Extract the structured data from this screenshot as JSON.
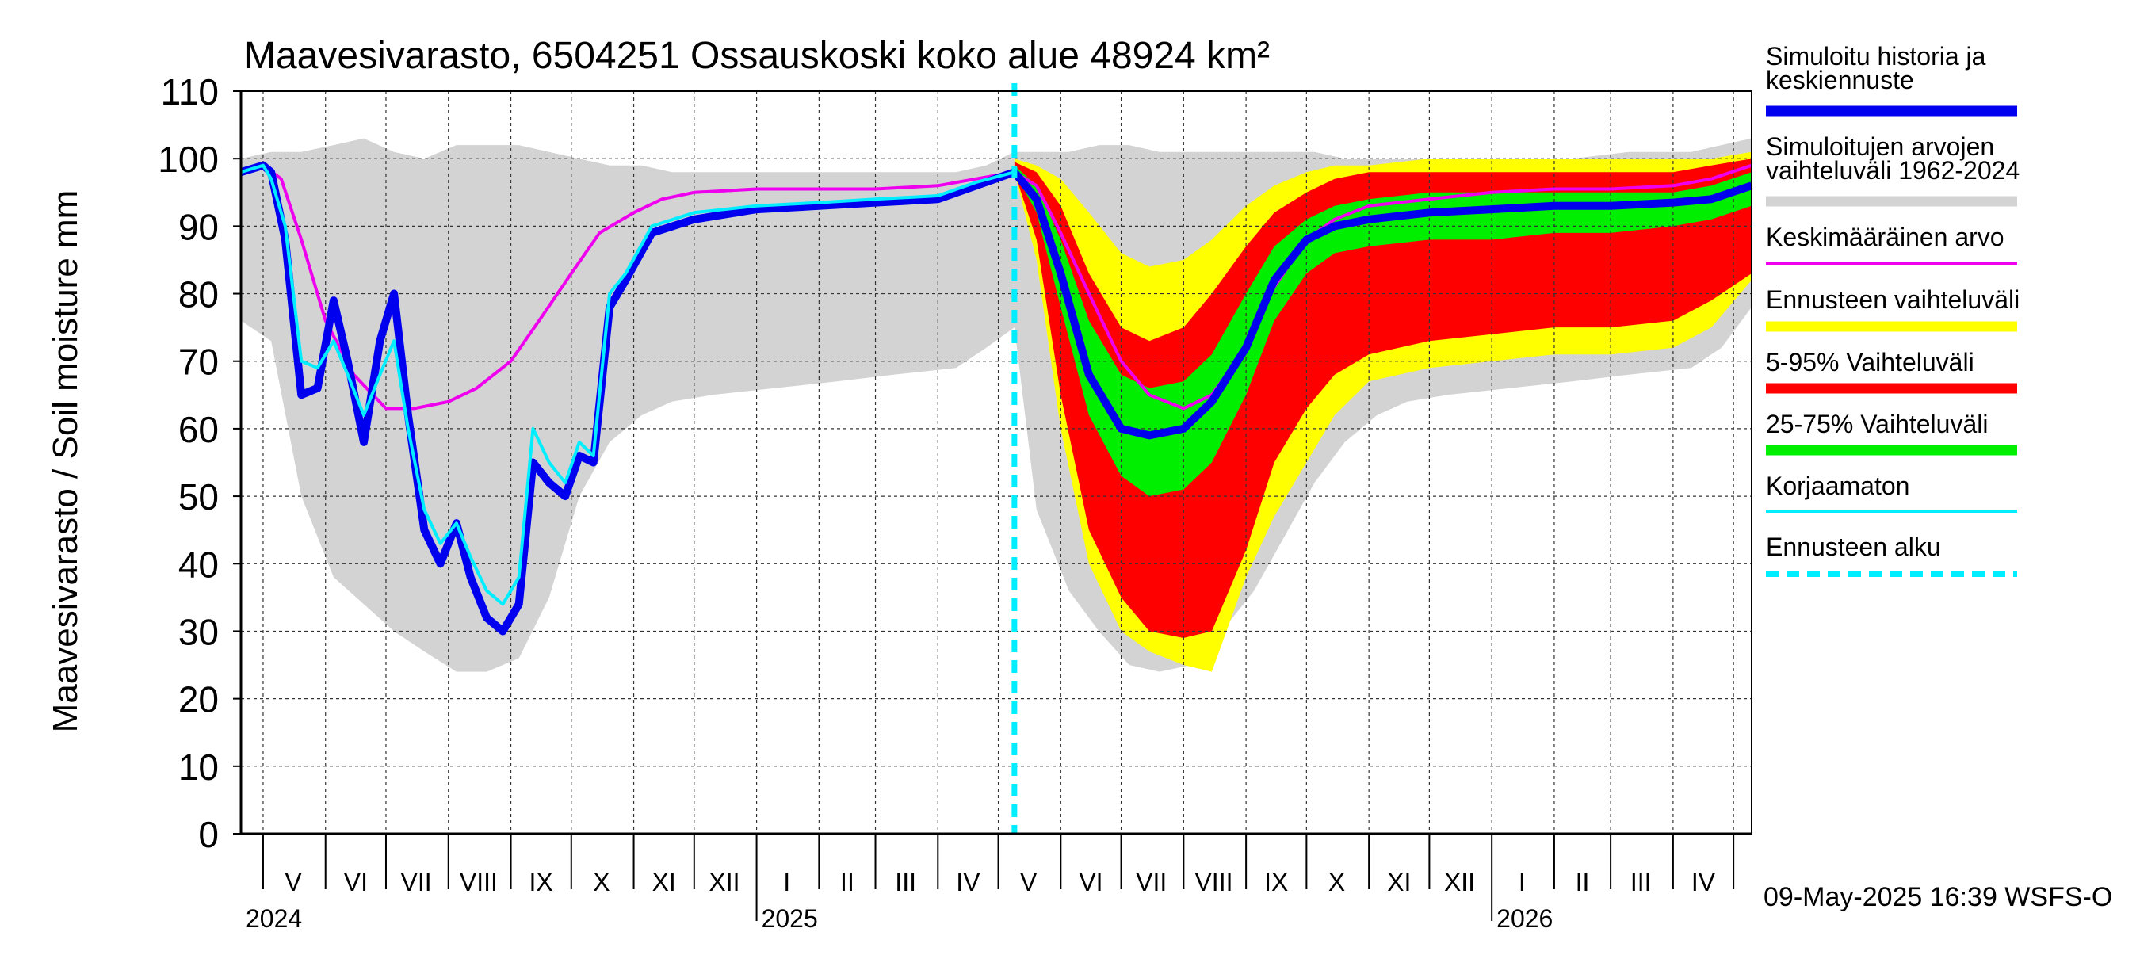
{
  "chart_data": {
    "type": "area",
    "title": "Maavesivarasto, 6504251 Ossauskoski koko alue 48924 km²",
    "ylabel": "Maavesivarasto / Soil moisture   mm",
    "ylim": [
      0,
      110
    ],
    "yticks": [
      0,
      10,
      20,
      30,
      40,
      50,
      60,
      70,
      80,
      90,
      100,
      110
    ],
    "grid": true,
    "legend_position": "right",
    "x_start": "2024-04-20",
    "x_end": "2026-05-10",
    "month_labels": [
      {
        "label": "V",
        "date": "2024-05-16"
      },
      {
        "label": "VI",
        "date": "2024-06-16"
      },
      {
        "label": "VII",
        "date": "2024-07-16"
      },
      {
        "label": "VIII",
        "date": "2024-08-16"
      },
      {
        "label": "IX",
        "date": "2024-09-16"
      },
      {
        "label": "X",
        "date": "2024-10-16"
      },
      {
        "label": "XI",
        "date": "2024-11-16"
      },
      {
        "label": "XII",
        "date": "2024-12-16"
      },
      {
        "label": "I",
        "date": "2025-01-16"
      },
      {
        "label": "II",
        "date": "2025-02-15"
      },
      {
        "label": "III",
        "date": "2025-03-16"
      },
      {
        "label": "IV",
        "date": "2025-04-16"
      },
      {
        "label": "V",
        "date": "2025-05-16"
      },
      {
        "label": "VI",
        "date": "2025-06-16"
      },
      {
        "label": "VII",
        "date": "2025-07-16"
      },
      {
        "label": "VIII",
        "date": "2025-08-16"
      },
      {
        "label": "IX",
        "date": "2025-09-16"
      },
      {
        "label": "X",
        "date": "2025-10-16"
      },
      {
        "label": "XI",
        "date": "2025-11-16"
      },
      {
        "label": "XII",
        "date": "2025-12-16"
      },
      {
        "label": "I",
        "date": "2026-01-16"
      },
      {
        "label": "II",
        "date": "2026-02-15"
      },
      {
        "label": "III",
        "date": "2026-03-16"
      },
      {
        "label": "IV",
        "date": "2026-04-16"
      }
    ],
    "month_boundaries": [
      "2024-05-01",
      "2024-06-01",
      "2024-07-01",
      "2024-08-01",
      "2024-09-01",
      "2024-10-01",
      "2024-11-01",
      "2024-12-01",
      "2025-01-01",
      "2025-02-01",
      "2025-03-01",
      "2025-04-01",
      "2025-05-01",
      "2025-06-01",
      "2025-07-01",
      "2025-08-01",
      "2025-09-01",
      "2025-10-01",
      "2025-11-01",
      "2025-12-01",
      "2026-01-01",
      "2026-02-01",
      "2026-03-01",
      "2026-04-01",
      "2026-05-01"
    ],
    "year_labels": [
      {
        "label": "2024",
        "date": "2024-04-20"
      },
      {
        "label": "2025",
        "date": "2025-01-01"
      },
      {
        "label": "2026",
        "date": "2026-01-01"
      }
    ],
    "forecast_start": "2025-05-09",
    "timestamp": "09-May-2025 16:39 WSFS-O",
    "legend": [
      {
        "label": "Simuloitu historia ja keskiennuste",
        "color": "#0000ee",
        "style": "thick"
      },
      {
        "label": "Simuloitujen arvojen vaihteluväli 1962-2024",
        "color": "#d3d3d3",
        "style": "thick"
      },
      {
        "label": "Keskimääräinen arvo",
        "color": "#ee00ee",
        "style": "thin"
      },
      {
        "label": "Ennusteen vaihteluväli",
        "color": "#ffff00",
        "style": "thick"
      },
      {
        "label": "5-95% Vaihteluväli",
        "color": "#ff0000",
        "style": "thick"
      },
      {
        "label": "25-75% Vaihteluväli",
        "color": "#00ee00",
        "style": "thick"
      },
      {
        "label": "Korjaamaton",
        "color": "#00eeff",
        "style": "thin"
      },
      {
        "label": "Ennusteen alku",
        "color": "#00eeff",
        "style": "dashed"
      }
    ],
    "series": {
      "hist_range": {
        "name": "Simuloitujen arvojen vaihteluväli 1962-2024",
        "color": "#d3d3d3",
        "x": [
          "2024-04-20",
          "2024-05-05",
          "2024-05-20",
          "2024-06-05",
          "2024-06-20",
          "2024-07-05",
          "2024-07-20",
          "2024-08-05",
          "2024-08-20",
          "2024-09-05",
          "2024-09-20",
          "2024-10-05",
          "2024-10-20",
          "2024-11-05",
          "2024-11-20",
          "2024-12-10",
          "2025-01-10",
          "2025-02-10",
          "2025-03-10",
          "2025-04-10",
          "2025-04-25",
          "2025-05-09",
          "2025-05-20",
          "2025-06-05",
          "2025-06-20",
          "2025-07-05",
          "2025-07-20",
          "2025-08-05",
          "2025-08-20",
          "2025-09-05",
          "2025-09-20",
          "2025-10-05",
          "2025-10-20",
          "2025-11-05",
          "2025-11-20",
          "2025-12-10",
          "2026-01-10",
          "2026-02-10",
          "2026-03-10",
          "2026-04-10",
          "2026-04-25",
          "2026-05-10"
        ],
        "low": [
          76,
          73,
          50,
          38,
          34,
          30,
          27,
          24,
          24,
          26,
          35,
          50,
          58,
          62,
          64,
          65,
          66,
          67,
          68,
          69,
          72,
          75,
          48,
          36,
          30,
          25,
          24,
          25,
          30,
          36,
          44,
          52,
          58,
          62,
          64,
          65,
          66,
          67,
          68,
          69,
          72,
          78
        ],
        "high": [
          100,
          101,
          101,
          102,
          103,
          101,
          100,
          102,
          102,
          102,
          101,
          100,
          99,
          99,
          98,
          98,
          98,
          98,
          98,
          98,
          99,
          101,
          101,
          101,
          102,
          102,
          101,
          101,
          101,
          101,
          101,
          101,
          100,
          100,
          100,
          100,
          100,
          100,
          101,
          101,
          102,
          103
        ]
      },
      "forecast_range": {
        "name": "Ennusteen vaihteluväli",
        "color": "#ffff00",
        "x": [
          "2025-05-09",
          "2025-05-20",
          "2025-06-01",
          "2025-06-15",
          "2025-07-01",
          "2025-07-15",
          "2025-08-01",
          "2025-08-15",
          "2025-09-01",
          "2025-09-15",
          "2025-10-01",
          "2025-10-15",
          "2025-11-01",
          "2025-12-01",
          "2026-01-01",
          "2026-02-01",
          "2026-03-01",
          "2026-04-01",
          "2026-04-20",
          "2026-05-10"
        ],
        "low": [
          98,
          85,
          60,
          40,
          30,
          27,
          25,
          24,
          38,
          47,
          55,
          62,
          67,
          69,
          70,
          71,
          71,
          72,
          75,
          82
        ],
        "high": [
          100,
          99,
          97,
          92,
          86,
          84,
          85,
          88,
          93,
          96,
          98,
          99,
          99,
          100,
          100,
          100,
          100,
          100,
          100,
          101
        ]
      },
      "p5_95": {
        "name": "5-95% Vaihteluväli",
        "color": "#ff0000",
        "x": [
          "2025-05-09",
          "2025-05-20",
          "2025-06-01",
          "2025-06-15",
          "2025-07-01",
          "2025-07-15",
          "2025-08-01",
          "2025-08-15",
          "2025-09-01",
          "2025-09-15",
          "2025-10-01",
          "2025-10-15",
          "2025-11-01",
          "2025-12-01",
          "2026-01-01",
          "2026-02-01",
          "2026-03-01",
          "2026-04-01",
          "2026-04-20",
          "2026-05-10"
        ],
        "low": [
          98,
          88,
          65,
          45,
          35,
          30,
          29,
          30,
          42,
          55,
          63,
          68,
          71,
          73,
          74,
          75,
          75,
          76,
          79,
          83
        ],
        "high": [
          99.5,
          98,
          93,
          83,
          75,
          73,
          75,
          80,
          87,
          92,
          95,
          97,
          98,
          98,
          98,
          98,
          98,
          98,
          99,
          100
        ]
      },
      "p25_75": {
        "name": "25-75% Vaihteluväli",
        "color": "#00ee00",
        "x": [
          "2025-05-09",
          "2025-05-20",
          "2025-06-01",
          "2025-06-15",
          "2025-07-01",
          "2025-07-15",
          "2025-08-01",
          "2025-08-15",
          "2025-09-01",
          "2025-09-15",
          "2025-10-01",
          "2025-10-15",
          "2025-11-01",
          "2025-12-01",
          "2026-01-01",
          "2026-02-01",
          "2026-03-01",
          "2026-04-01",
          "2026-04-20",
          "2026-05-10"
        ],
        "low": [
          98,
          92,
          78,
          62,
          53,
          50,
          51,
          55,
          65,
          76,
          83,
          86,
          87,
          88,
          88,
          89,
          89,
          90,
          91,
          93
        ],
        "high": [
          99,
          96,
          88,
          76,
          68,
          66,
          67,
          71,
          80,
          87,
          91,
          93,
          94,
          95,
          95,
          95,
          95,
          95,
          96,
          98
        ]
      },
      "mean": {
        "name": "Keskimääräinen arvo",
        "color": "#ee00ee",
        "x": [
          "2024-04-20",
          "2024-05-01",
          "2024-05-10",
          "2024-05-20",
          "2024-06-01",
          "2024-06-15",
          "2024-07-01",
          "2024-07-15",
          "2024-08-01",
          "2024-08-15",
          "2024-09-01",
          "2024-09-15",
          "2024-10-01",
          "2024-10-15",
          "2024-11-01",
          "2024-11-15",
          "2024-12-01",
          "2025-01-01",
          "2025-02-01",
          "2025-03-01",
          "2025-04-01",
          "2025-04-20",
          "2025-05-09",
          "2025-05-20",
          "2025-06-01",
          "2025-06-15",
          "2025-07-01",
          "2025-07-15",
          "2025-08-01",
          "2025-08-15",
          "2025-09-01",
          "2025-09-15",
          "2025-10-01",
          "2025-10-15",
          "2025-11-01",
          "2025-12-01",
          "2026-01-01",
          "2026-02-01",
          "2026-03-01",
          "2026-04-01",
          "2026-04-20",
          "2026-05-10"
        ],
        "y": [
          98,
          99,
          97,
          88,
          76,
          68,
          63,
          63,
          64,
          66,
          70,
          76,
          83,
          89,
          92,
          94,
          95,
          95.5,
          95.5,
          95.5,
          96,
          97,
          98,
          96,
          89,
          80,
          70,
          65,
          63,
          65,
          72,
          81,
          88,
          91,
          93,
          94,
          95,
          95.5,
          95.5,
          96,
          97,
          99
        ]
      },
      "median": {
        "name": "Simuloitu historia ja keskiennuste",
        "color": "#0000ee",
        "x": [
          "2024-04-20",
          "2024-05-01",
          "2024-05-05",
          "2024-05-12",
          "2024-05-20",
          "2024-05-28",
          "2024-06-05",
          "2024-06-12",
          "2024-06-20",
          "2024-06-28",
          "2024-07-05",
          "2024-07-12",
          "2024-07-20",
          "2024-07-28",
          "2024-08-05",
          "2024-08-12",
          "2024-08-20",
          "2024-08-28",
          "2024-09-05",
          "2024-09-12",
          "2024-09-20",
          "2024-09-28",
          "2024-10-05",
          "2024-10-12",
          "2024-10-20",
          "2024-10-28",
          "2024-11-10",
          "2024-12-01",
          "2025-01-01",
          "2025-02-01",
          "2025-03-01",
          "2025-04-01",
          "2025-04-20",
          "2025-05-09",
          "2025-05-20",
          "2025-06-01",
          "2025-06-15",
          "2025-07-01",
          "2025-07-15",
          "2025-08-01",
          "2025-08-15",
          "2025-09-01",
          "2025-09-15",
          "2025-10-01",
          "2025-10-15",
          "2025-11-01",
          "2025-12-01",
          "2026-01-01",
          "2026-02-01",
          "2026-03-01",
          "2026-04-01",
          "2026-04-20",
          "2026-05-10"
        ],
        "y": [
          98,
          99,
          98,
          88,
          65,
          66,
          79,
          70,
          58,
          73,
          80,
          62,
          45,
          40,
          46,
          38,
          32,
          30,
          34,
          55,
          52,
          50,
          56,
          55,
          78,
          82,
          89,
          91,
          92.5,
          93,
          93.5,
          94,
          96,
          98,
          94,
          83,
          68,
          60,
          59,
          60,
          64,
          72,
          82,
          88,
          90,
          91,
          92,
          92.5,
          93,
          93,
          93.5,
          94,
          96
        ]
      },
      "uncorrected": {
        "name": "Korjaamaton",
        "color": "#00eeff",
        "x": [
          "2024-04-20",
          "2024-05-01",
          "2024-05-05",
          "2024-05-12",
          "2024-05-20",
          "2024-05-28",
          "2024-06-05",
          "2024-06-12",
          "2024-06-20",
          "2024-06-28",
          "2024-07-05",
          "2024-07-12",
          "2024-07-20",
          "2024-07-28",
          "2024-08-05",
          "2024-08-12",
          "2024-08-20",
          "2024-08-28",
          "2024-09-05",
          "2024-09-12",
          "2024-09-20",
          "2024-09-28",
          "2024-10-05",
          "2024-10-12",
          "2024-10-20",
          "2024-10-28",
          "2024-11-10",
          "2024-12-01",
          "2025-01-01",
          "2025-02-01",
          "2025-03-01",
          "2025-04-01",
          "2025-04-20",
          "2025-05-09"
        ],
        "y": [
          98,
          99,
          97,
          90,
          70,
          69,
          73,
          68,
          62,
          68,
          73,
          60,
          48,
          43,
          46,
          41,
          36,
          34,
          38,
          60,
          55,
          52,
          58,
          56,
          80,
          83,
          90,
          92,
          93,
          93.5,
          94,
          94.5,
          96.5,
          98
        ]
      }
    }
  }
}
